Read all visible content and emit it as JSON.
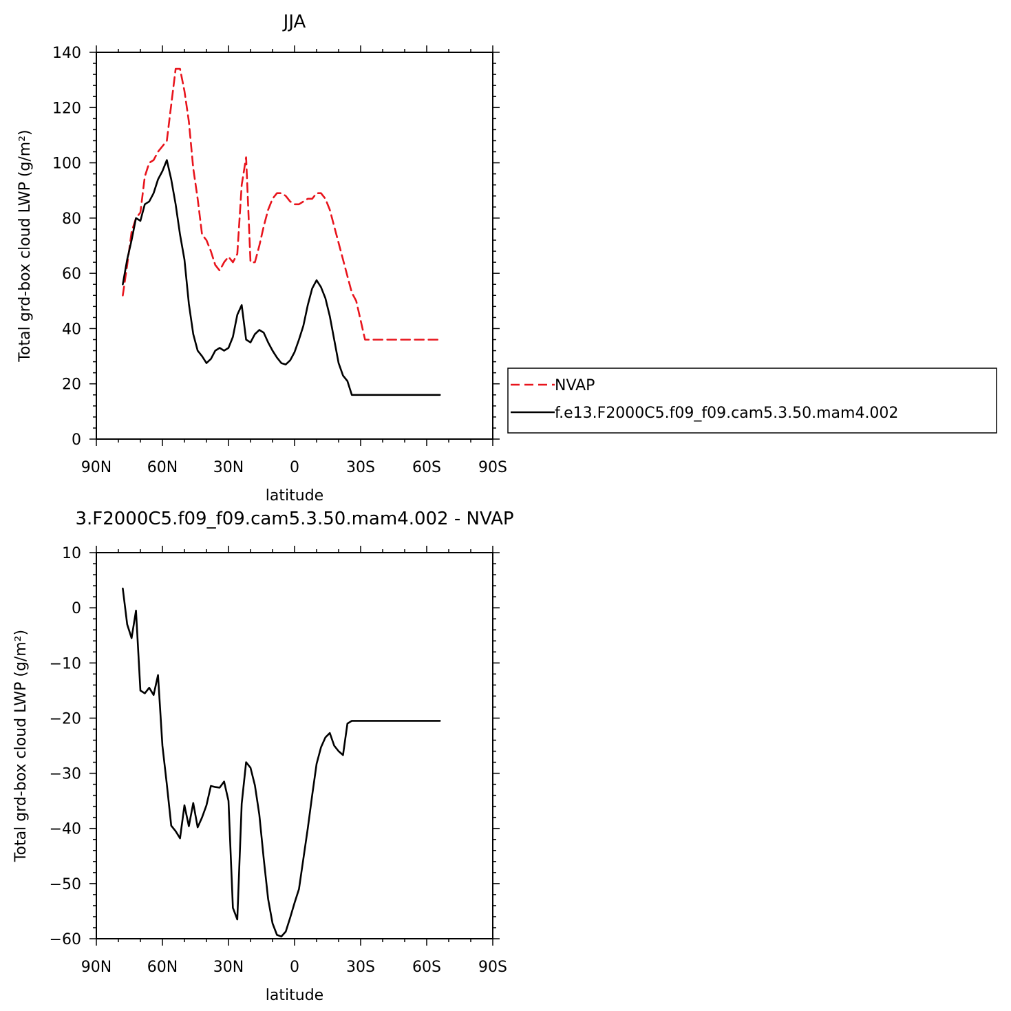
{
  "colors": {
    "model": "#000000",
    "obs": "#e8141c",
    "background": "#ffffff"
  },
  "chart_data": [
    {
      "type": "line",
      "title": "JJA",
      "xlabel": "latitude",
      "ylabel": "Total grd-box cloud LWP (g/m²)",
      "xlim": [
        90,
        -90
      ],
      "ylim": [
        0,
        140
      ],
      "x_ticks": [
        90,
        60,
        30,
        0,
        -30,
        -60,
        -90
      ],
      "x_tick_labels": [
        "90N",
        "60N",
        "30N",
        "0",
        "30S",
        "60S",
        "90S"
      ],
      "y_ticks": [
        0,
        20,
        40,
        60,
        80,
        100,
        120,
        140
      ],
      "y_tick_labels": [
        "0",
        "20",
        "40",
        "60",
        "80",
        "100",
        "120",
        "140"
      ],
      "grid": false,
      "legend_position": "right",
      "series": [
        {
          "name": "NVAP",
          "color": "#e8141c",
          "dash": "dashed",
          "x": [
            78,
            76,
            74,
            72,
            70,
            68,
            66,
            64,
            62,
            60,
            58,
            56,
            54,
            52,
            50,
            48,
            46,
            44,
            42,
            40,
            38,
            36,
            34,
            32,
            30,
            28,
            26,
            24,
            22,
            20,
            18,
            16,
            14,
            12,
            10,
            8,
            6,
            4,
            2,
            0,
            -2,
            -4,
            -6,
            -8,
            -10,
            -12,
            -14,
            -16,
            -18,
            -20,
            -22,
            -24,
            -26,
            -28,
            -30,
            -32,
            -34,
            -36,
            -38,
            -40,
            -42,
            -44,
            -46,
            -48,
            -50,
            -52,
            -54,
            -56,
            -58,
            -60,
            -62,
            -64,
            -66
          ],
          "values": [
            52,
            63,
            75,
            80,
            82,
            95,
            100,
            101,
            104,
            106,
            108,
            121,
            134,
            134,
            126,
            115,
            98,
            87,
            74,
            72,
            68,
            63,
            61,
            64,
            66,
            64,
            67,
            92,
            102,
            64,
            64,
            70,
            77,
            83,
            87,
            89,
            89,
            88,
            86,
            85,
            85,
            86,
            87,
            87,
            89,
            89,
            87,
            83,
            77,
            71,
            65,
            59,
            53,
            50,
            43,
            36,
            36,
            36,
            36,
            36,
            36,
            36,
            36,
            36,
            36,
            36,
            36,
            36,
            36,
            36,
            36,
            36,
            36
          ]
        },
        {
          "name": "f.e13.F2000C5.f09_f09.cam5.3.50.mam4.002",
          "color": "#000000",
          "dash": "solid",
          "x": [
            78,
            76,
            74,
            72,
            70,
            68,
            66,
            64,
            62,
            60,
            58,
            56,
            54,
            52,
            50,
            48,
            46,
            44,
            42,
            40,
            38,
            36,
            34,
            32,
            30,
            28,
            26,
            24,
            22,
            20,
            18,
            16,
            14,
            12,
            10,
            8,
            6,
            4,
            2,
            0,
            -2,
            -4,
            -6,
            -8,
            -10,
            -12,
            -14,
            -16,
            -18,
            -20,
            -22,
            -24,
            -26,
            -28,
            -30,
            -32,
            -34,
            -36,
            -38,
            -40,
            -42,
            -44,
            -46,
            -48,
            -50,
            -52,
            -54,
            -56,
            -58,
            -60,
            -62,
            -64,
            -66
          ],
          "values": [
            56,
            65,
            72,
            80,
            79,
            85,
            86,
            89,
            94,
            97,
            101,
            94,
            85,
            74,
            65,
            49,
            38,
            32,
            30,
            27.5,
            29,
            32,
            33,
            32,
            33,
            37,
            45,
            48.5,
            36,
            35,
            38,
            39.5,
            38.5,
            35,
            32,
            29.5,
            27.5,
            27,
            28.5,
            31.5,
            36,
            41,
            48.5,
            54.5,
            57.5,
            55,
            51,
            44.5,
            36,
            27.5,
            23,
            21,
            16,
            16,
            16,
            16,
            16,
            16,
            16,
            16,
            16,
            16,
            16,
            16,
            16,
            16,
            16,
            16,
            16,
            16,
            16,
            16,
            16
          ]
        }
      ]
    },
    {
      "type": "line",
      "title": "3.F2000C5.f09_f09.cam5.3.50.mam4.002 - NVAP",
      "xlabel": "latitude",
      "ylabel": "Total grd-box cloud LWP (g/m²)",
      "xlim": [
        90,
        -90
      ],
      "ylim": [
        -60,
        10
      ],
      "x_ticks": [
        90,
        60,
        30,
        0,
        -30,
        -60,
        -90
      ],
      "x_tick_labels": [
        "90N",
        "60N",
        "30N",
        "0",
        "30S",
        "60S",
        "90S"
      ],
      "y_ticks": [
        -60,
        -50,
        -40,
        -30,
        -20,
        -10,
        0,
        10
      ],
      "y_tick_labels": [
        "−60",
        "−50",
        "−40",
        "−30",
        "−20",
        "−10",
        "0",
        "10"
      ],
      "grid": false,
      "series": [
        {
          "color": "#000000",
          "dash": "solid",
          "x": [
            78,
            76,
            74,
            72,
            70,
            68,
            66,
            64,
            62,
            60,
            58,
            56,
            54,
            52,
            50,
            48,
            46,
            44,
            42,
            40,
            38,
            36,
            34,
            32,
            30,
            28,
            26,
            24,
            22,
            20,
            18,
            16,
            14,
            12,
            10,
            8,
            6,
            4,
            2,
            0,
            -2,
            -4,
            -6,
            -8,
            -10,
            -12,
            -14,
            -16,
            -18,
            -20,
            -22,
            -24,
            -26,
            -28,
            -30,
            -32,
            -34,
            -36,
            -38,
            -40,
            -42,
            -44,
            -46,
            -48,
            -50,
            -52,
            -54,
            -56,
            -58,
            -60,
            -62,
            -64,
            -66
          ],
          "values": [
            3.5,
            -3,
            -5.5,
            -0.5,
            -15,
            -15.5,
            -14.5,
            -15.8,
            -12.2,
            -25,
            -32,
            -39.5,
            -40.5,
            -41.8,
            -35.8,
            -39.6,
            -35.4,
            -39.8,
            -38,
            -35.8,
            -32.3,
            -32.5,
            -32.6,
            -31.5,
            -35,
            -54.4,
            -56.5,
            -35.5,
            -28,
            -29,
            -32.2,
            -37.5,
            -45.5,
            -52.8,
            -57.2,
            -59.3,
            -59.6,
            -58.7,
            -56.2,
            -53.5,
            -51,
            -45.5,
            -40,
            -34,
            -28.3,
            -25.3,
            -23.5,
            -22.7,
            -25,
            -26,
            -26.7,
            -21,
            -20.5,
            -20.5,
            -20.5,
            -20.5,
            -20.5,
            -20.5,
            -20.5,
            -20.5,
            -20.5,
            -20.5,
            -20.5,
            -20.5,
            -20.5,
            -20.5,
            -20.5,
            -20.5,
            -20.5,
            -20.5,
            -20.5,
            -20.5,
            -20.5
          ]
        }
      ]
    }
  ]
}
